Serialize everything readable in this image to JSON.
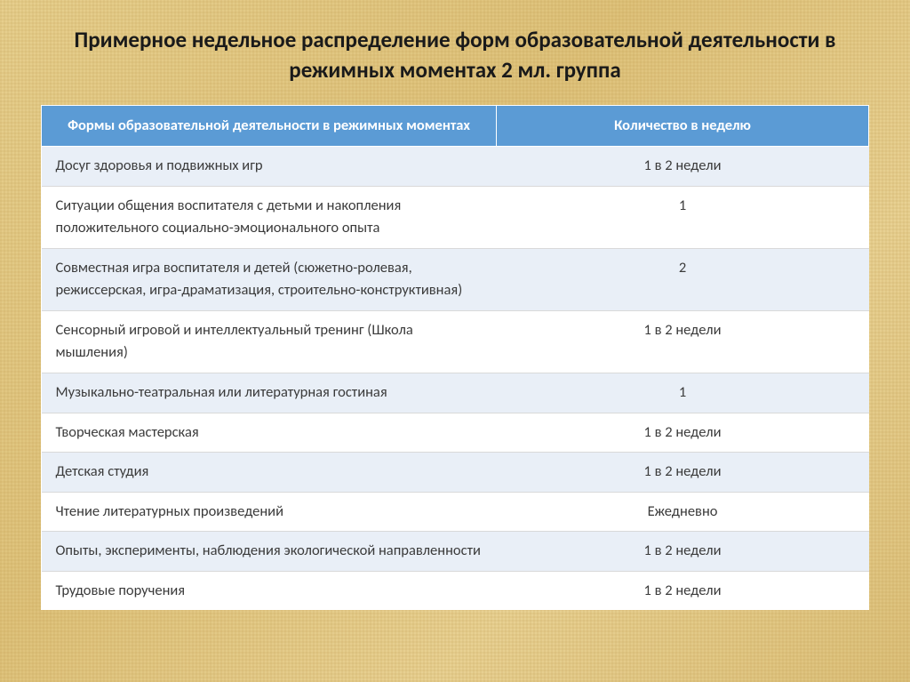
{
  "page": {
    "title": "Примерное недельное распределение форм образовательной деятельности в режимных моментах 2 мл. группа",
    "title_fontsize": 25,
    "title_weight": 700,
    "title_color": "#1a1a1a",
    "background_colors": [
      "#e6cf8e",
      "#dec27b",
      "#e8d193",
      "#dcc07a"
    ]
  },
  "table": {
    "type": "table",
    "header_bg": "#5b9bd5",
    "header_fg": "#ffffff",
    "row_odd_bg": "#e9eff7",
    "row_even_bg": "#ffffff",
    "border_color": "#d9d9d9",
    "body_fontsize": 16.5,
    "columns": [
      {
        "label": "Формы образовательной деятельности в режимных моментах",
        "align": "left",
        "width_pct": 55
      },
      {
        "label": "Количество в неделю",
        "align": "center",
        "width_pct": 45
      }
    ],
    "rows": [
      [
        "Досуг здоровья и подвижных игр",
        "1 в 2 недели"
      ],
      [
        "Ситуации общения воспитателя с детьми и накопления положительного социально-эмоционального опыта",
        "1"
      ],
      [
        "Совместная игра воспитателя и детей (сюжетно-ролевая, режиссерская, игра-драматизация, строительно-конструктивная)",
        "2"
      ],
      [
        "Сенсорный игровой и интеллектуальный тренинг (Школа мышления)",
        "1 в 2 недели"
      ],
      [
        "Музыкально-театральная или литературная гостиная",
        "1"
      ],
      [
        "Творческая мастерская",
        "1 в 2 недели"
      ],
      [
        "Детская студия",
        "1 в 2 недели"
      ],
      [
        "Чтение литературных произведений",
        "Ежедневно"
      ],
      [
        "Опыты, эксперименты, наблюдения экологической направленности",
        "1 в 2 недели"
      ],
      [
        "Трудовые поручения",
        "1 в 2 недели"
      ]
    ]
  }
}
